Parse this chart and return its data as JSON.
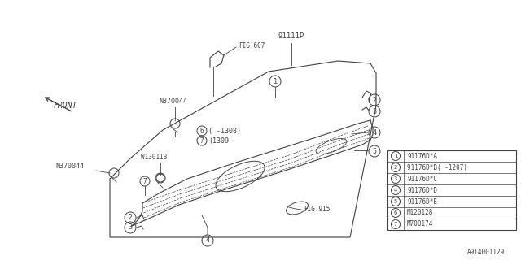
{
  "background_color": "#ffffff",
  "line_color": "#404040",
  "title_code": "A914001129",
  "legend_items": [
    {
      "num": "1",
      "code": "91176D*A"
    },
    {
      "num": "2",
      "code": "91176D*B( -1207)"
    },
    {
      "num": "3",
      "code": "91176D*C"
    },
    {
      "num": "4",
      "code": "91176D*D"
    },
    {
      "num": "5",
      "code": "91176D*E"
    },
    {
      "num": "6",
      "code": "M120128"
    },
    {
      "num": "7",
      "code": "M700174"
    }
  ],
  "fig607_label": "FIG.607",
  "fig915_label": "FIG.915",
  "part91111P": "91111P",
  "n370044": "N370044",
  "w130113": "W130113",
  "front": "FRONT",
  "note6": "( -1308)",
  "note7": "(1309-",
  "bottom_code": "A914001129"
}
